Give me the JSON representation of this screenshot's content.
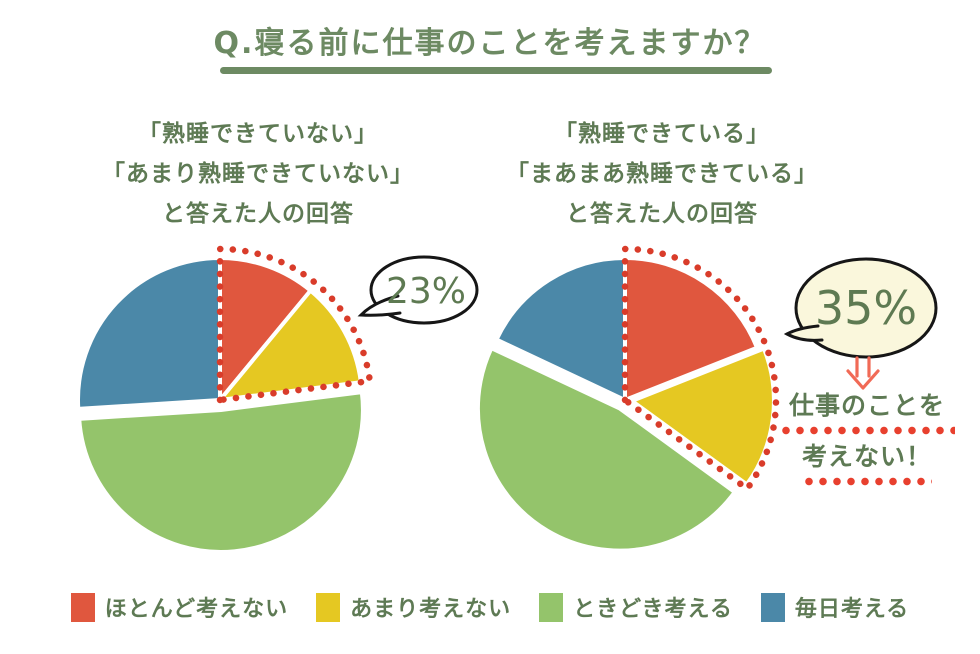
{
  "title": "Q.寝る前に仕事のことを考えますか？",
  "theme": {
    "heading_color": "#6d8a63",
    "text_color": "#5e7a54",
    "dotted_outline_color": "#d93c2a",
    "annotation_dot_color": "#e8402e",
    "arrow_color": "#f16a56",
    "bubble_stroke_color": "#161616"
  },
  "legend": [
    {
      "label": "ほとんど考えない",
      "color": "#e0573e"
    },
    {
      "label": "あまり考えない",
      "color": "#e5c822"
    },
    {
      "label": "ときどき考える",
      "color": "#94c46b"
    },
    {
      "label": "毎日考える",
      "color": "#4b88a8"
    }
  ],
  "annotation": {
    "line1": "仕事のことを",
    "line2": "考えない！"
  },
  "chart_data": [
    {
      "type": "pie",
      "title_lines": [
        "「熟睡できていない」",
        "「あまり熟睡できていない」",
        "と答えた人の回答"
      ],
      "categories": [
        "ほとんど考えない",
        "あまり考えない",
        "ときどき考える",
        "毎日考える"
      ],
      "values_pct": [
        11,
        12,
        51,
        26
      ],
      "colors": [
        "#e0573e",
        "#e5c822",
        "#94c46b",
        "#4b88a8"
      ],
      "highlight_pct": 23,
      "callout": "23%",
      "callout_bg": "#ffffff",
      "note": "red dotted wedge outlines the first two slices (23% total), start at 12 o'clock, clockwise"
    },
    {
      "type": "pie",
      "title_lines": [
        "「熟睡できている」",
        "「まあまあ熟睡できている」",
        "と答えた人の回答"
      ],
      "categories": [
        "ほとんど考えない",
        "あまり考えない",
        "ときどき考える",
        "毎日考える"
      ],
      "values_pct": [
        19,
        16,
        47,
        18
      ],
      "colors": [
        "#e0573e",
        "#e5c822",
        "#94c46b",
        "#4b88a8"
      ],
      "highlight_pct": 35,
      "callout": "35%",
      "callout_bg": "#faf7dc",
      "note": "red dotted wedge outlines the first two slices (35% total), start at 12 o'clock, clockwise"
    }
  ]
}
